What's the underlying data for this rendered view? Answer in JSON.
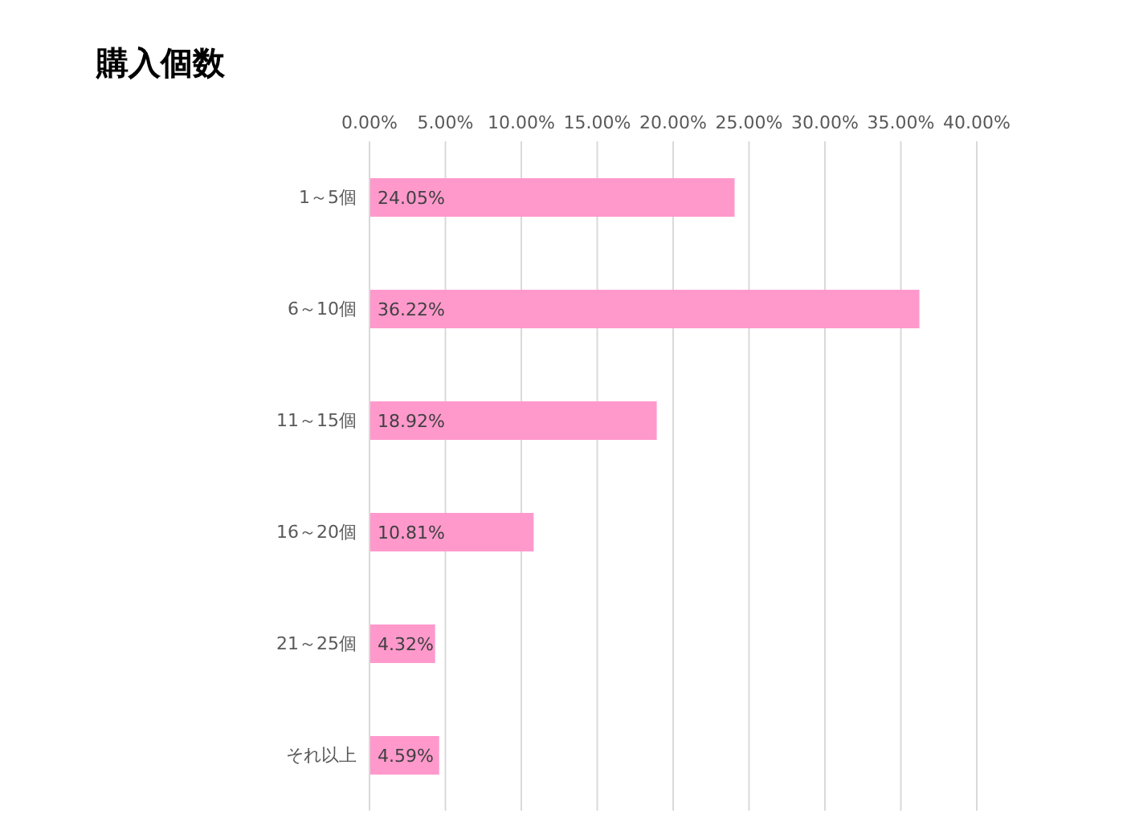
{
  "chart_data": {
    "type": "bar",
    "title": "購入個数",
    "orientation": "horizontal",
    "categories": [
      "1～5個",
      "6～10個",
      "11～15個",
      "16～20個",
      "21～25個",
      "それ以上"
    ],
    "values": [
      24.05,
      36.22,
      18.92,
      10.81,
      4.32,
      4.59
    ],
    "value_labels": [
      "24.05%",
      "36.22%",
      "18.92%",
      "10.81%",
      "4.32%",
      "4.59%"
    ],
    "color": "#ff99cc",
    "xlim": [
      0,
      40
    ],
    "xticks": [
      {
        "value": 0,
        "label": "0.00%"
      },
      {
        "value": 5,
        "label": "5.00%"
      },
      {
        "value": 10,
        "label": "10.00%"
      },
      {
        "value": 15,
        "label": "15.00%"
      },
      {
        "value": 20,
        "label": "20.00%"
      },
      {
        "value": 25,
        "label": "25.00%"
      },
      {
        "value": 30,
        "label": "30.00%"
      },
      {
        "value": 35,
        "label": "35.00%"
      },
      {
        "value": 40,
        "label": "40.00%"
      }
    ],
    "grid": "x",
    "legend": false
  }
}
